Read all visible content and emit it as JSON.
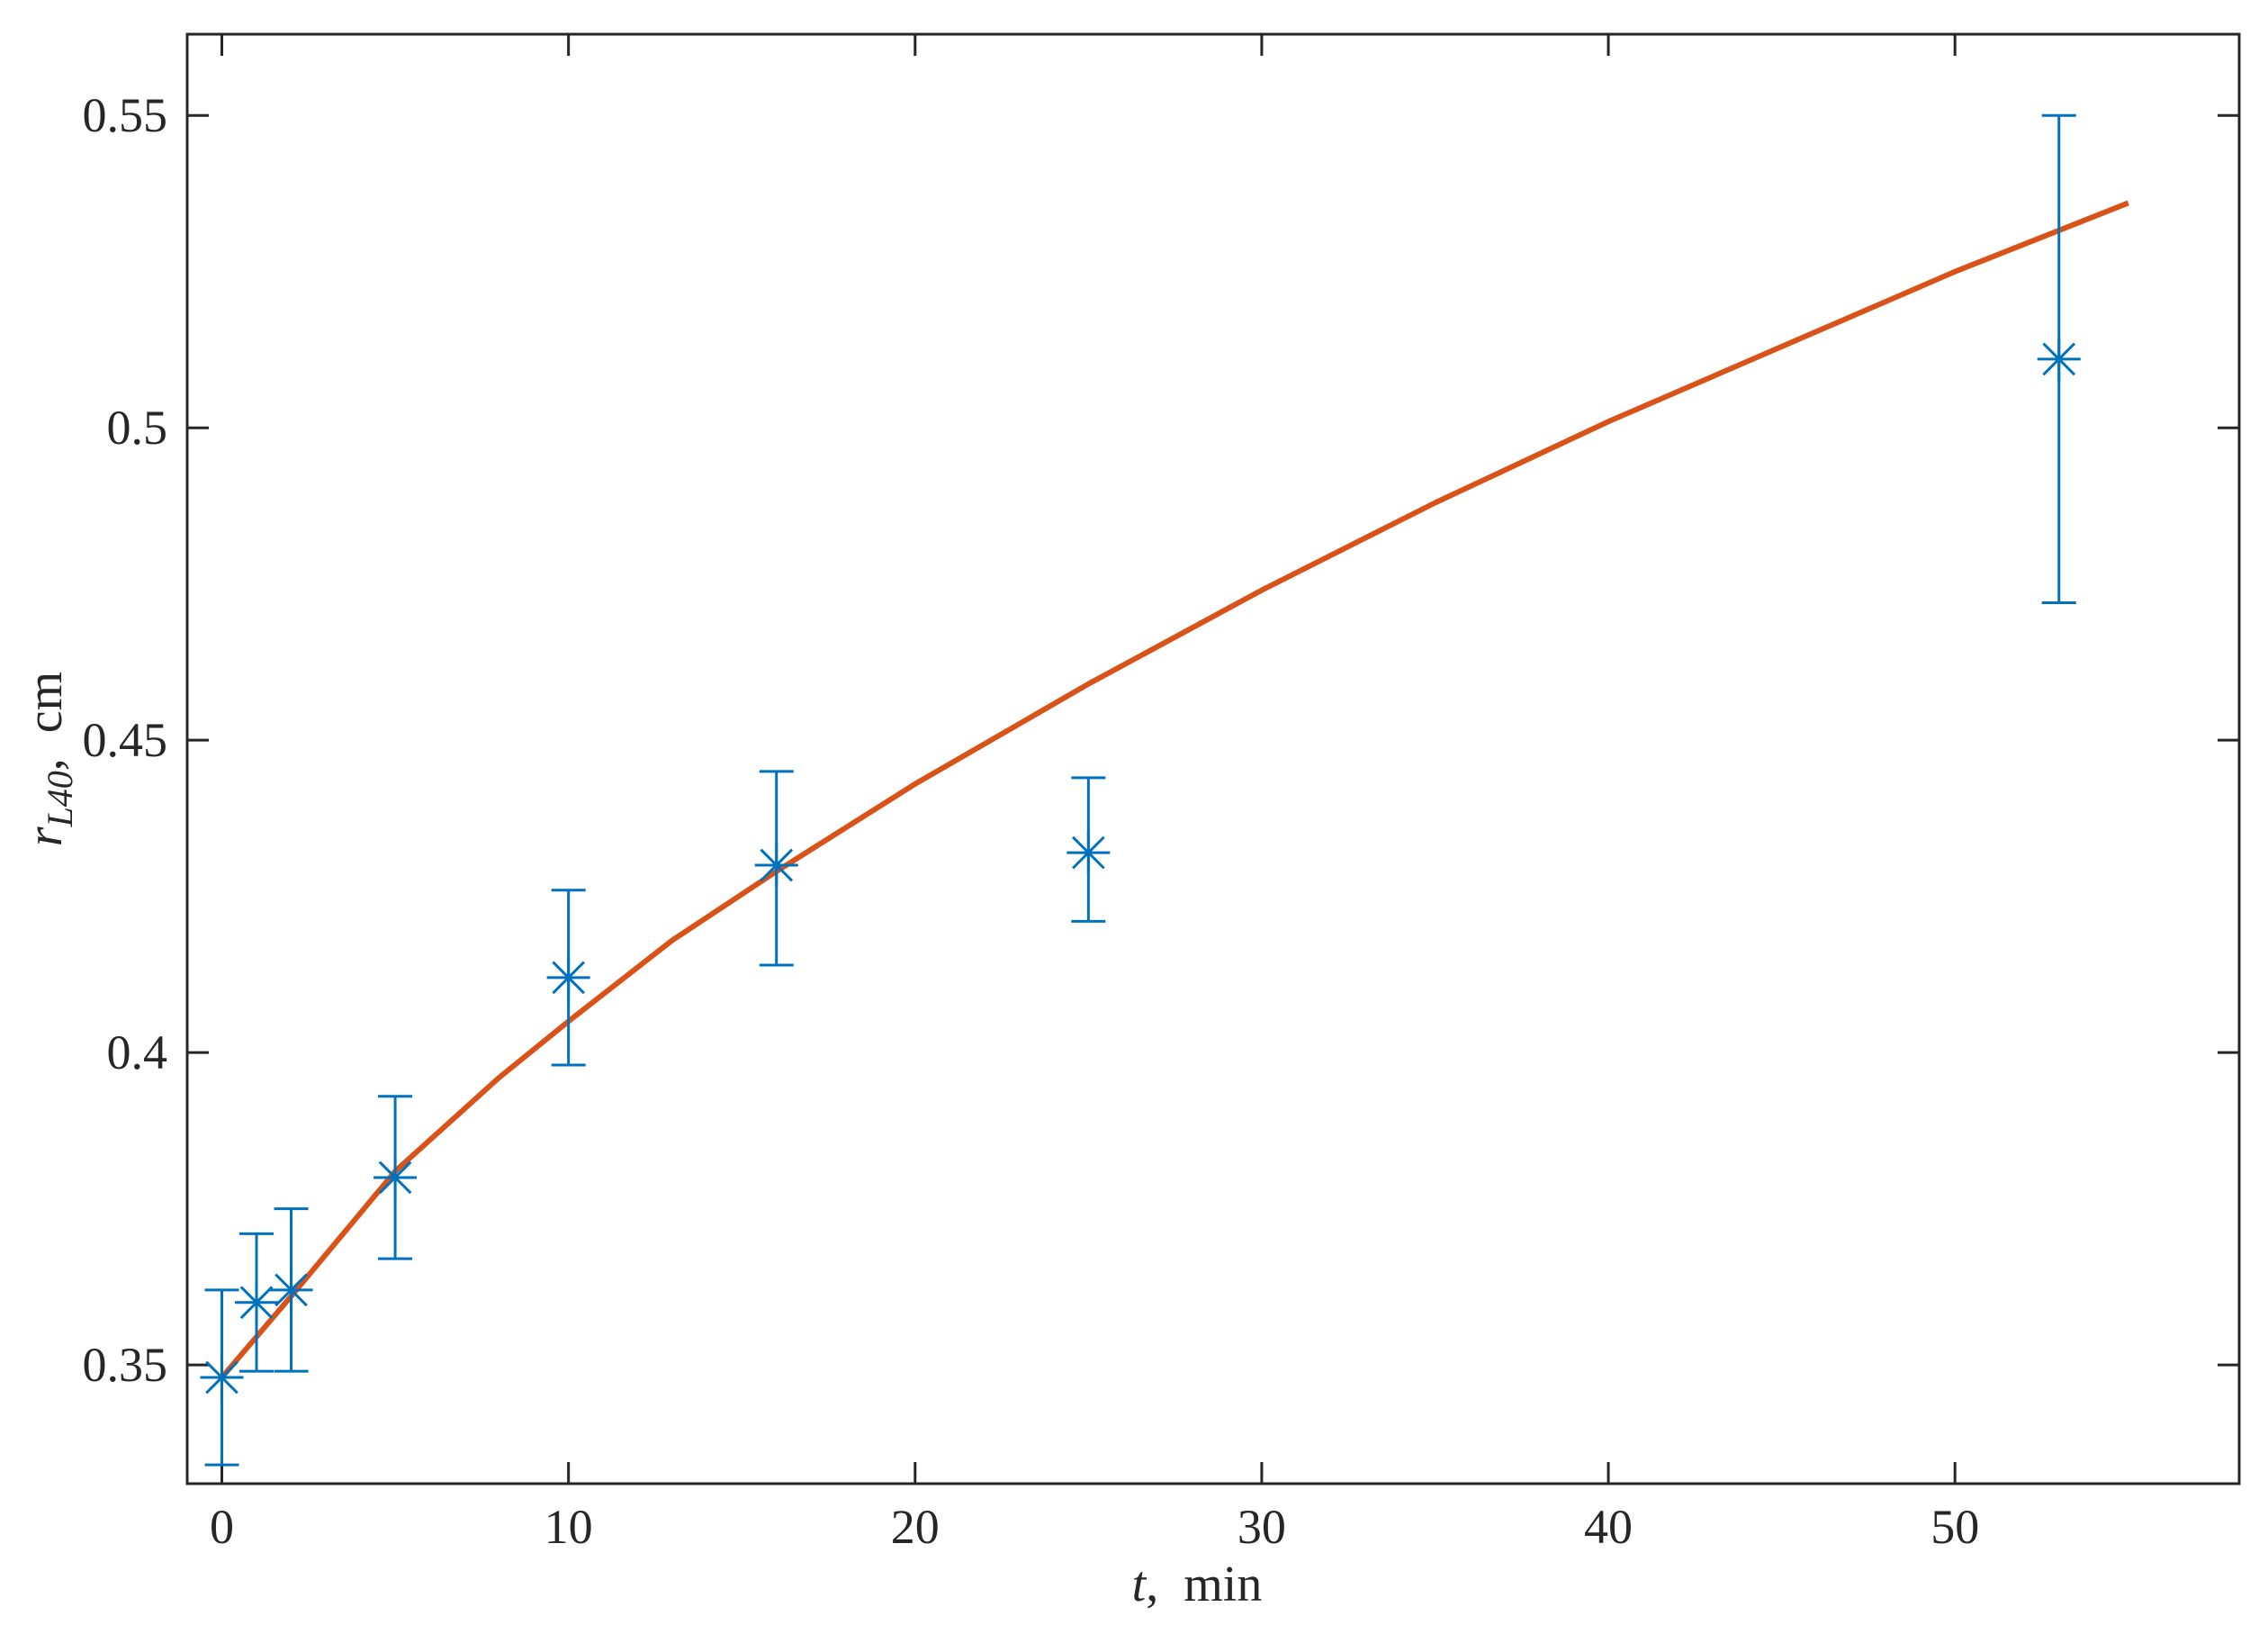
{
  "chart_data": {
    "type": "scatter",
    "title": "",
    "xlabel_var": "t",
    "xlabel_unit": "min",
    "ylabel_var": "r",
    "ylabel_sub": "L40",
    "ylabel_unit": "cm",
    "xlim": [
      -1,
      58.2
    ],
    "ylim": [
      0.331,
      0.563
    ],
    "xticks": [
      0,
      10,
      20,
      30,
      40,
      50
    ],
    "xtick_labels": [
      "0",
      "10",
      "20",
      "30",
      "40",
      "50"
    ],
    "yticks": [
      0.35,
      0.4,
      0.45,
      0.5,
      0.55
    ],
    "ytick_labels": [
      "0.35",
      "0.4",
      "0.45",
      "0.5",
      "0.55"
    ],
    "grid": false,
    "legend": "none",
    "series": [
      {
        "kind": "errorbar-points",
        "marker": "asterisk",
        "color": "#0072BD",
        "points": [
          {
            "x": 0,
            "y": 0.348,
            "lower": 0.334,
            "upper": 0.362
          },
          {
            "x": 1,
            "y": 0.36,
            "lower": 0.349,
            "upper": 0.371
          },
          {
            "x": 2,
            "y": 0.362,
            "lower": 0.349,
            "upper": 0.375
          },
          {
            "x": 5,
            "y": 0.38,
            "lower": 0.367,
            "upper": 0.393
          },
          {
            "x": 10,
            "y": 0.412,
            "lower": 0.398,
            "upper": 0.426
          },
          {
            "x": 16,
            "y": 0.43,
            "lower": 0.414,
            "upper": 0.445
          },
          {
            "x": 25,
            "y": 0.432,
            "lower": 0.421,
            "upper": 0.444
          },
          {
            "x": 53,
            "y": 0.511,
            "lower": 0.472,
            "upper": 0.55
          }
        ]
      },
      {
        "kind": "line",
        "color": "#D95319",
        "x": [
          0,
          2,
          5,
          8,
          10,
          13,
          16,
          20,
          25,
          30,
          35,
          40,
          45,
          50,
          55
        ],
        "y": [
          0.348,
          0.361,
          0.381,
          0.396,
          0.405,
          0.418,
          0.429,
          0.443,
          0.459,
          0.474,
          0.488,
          0.501,
          0.513,
          0.525,
          0.536
        ]
      }
    ]
  }
}
